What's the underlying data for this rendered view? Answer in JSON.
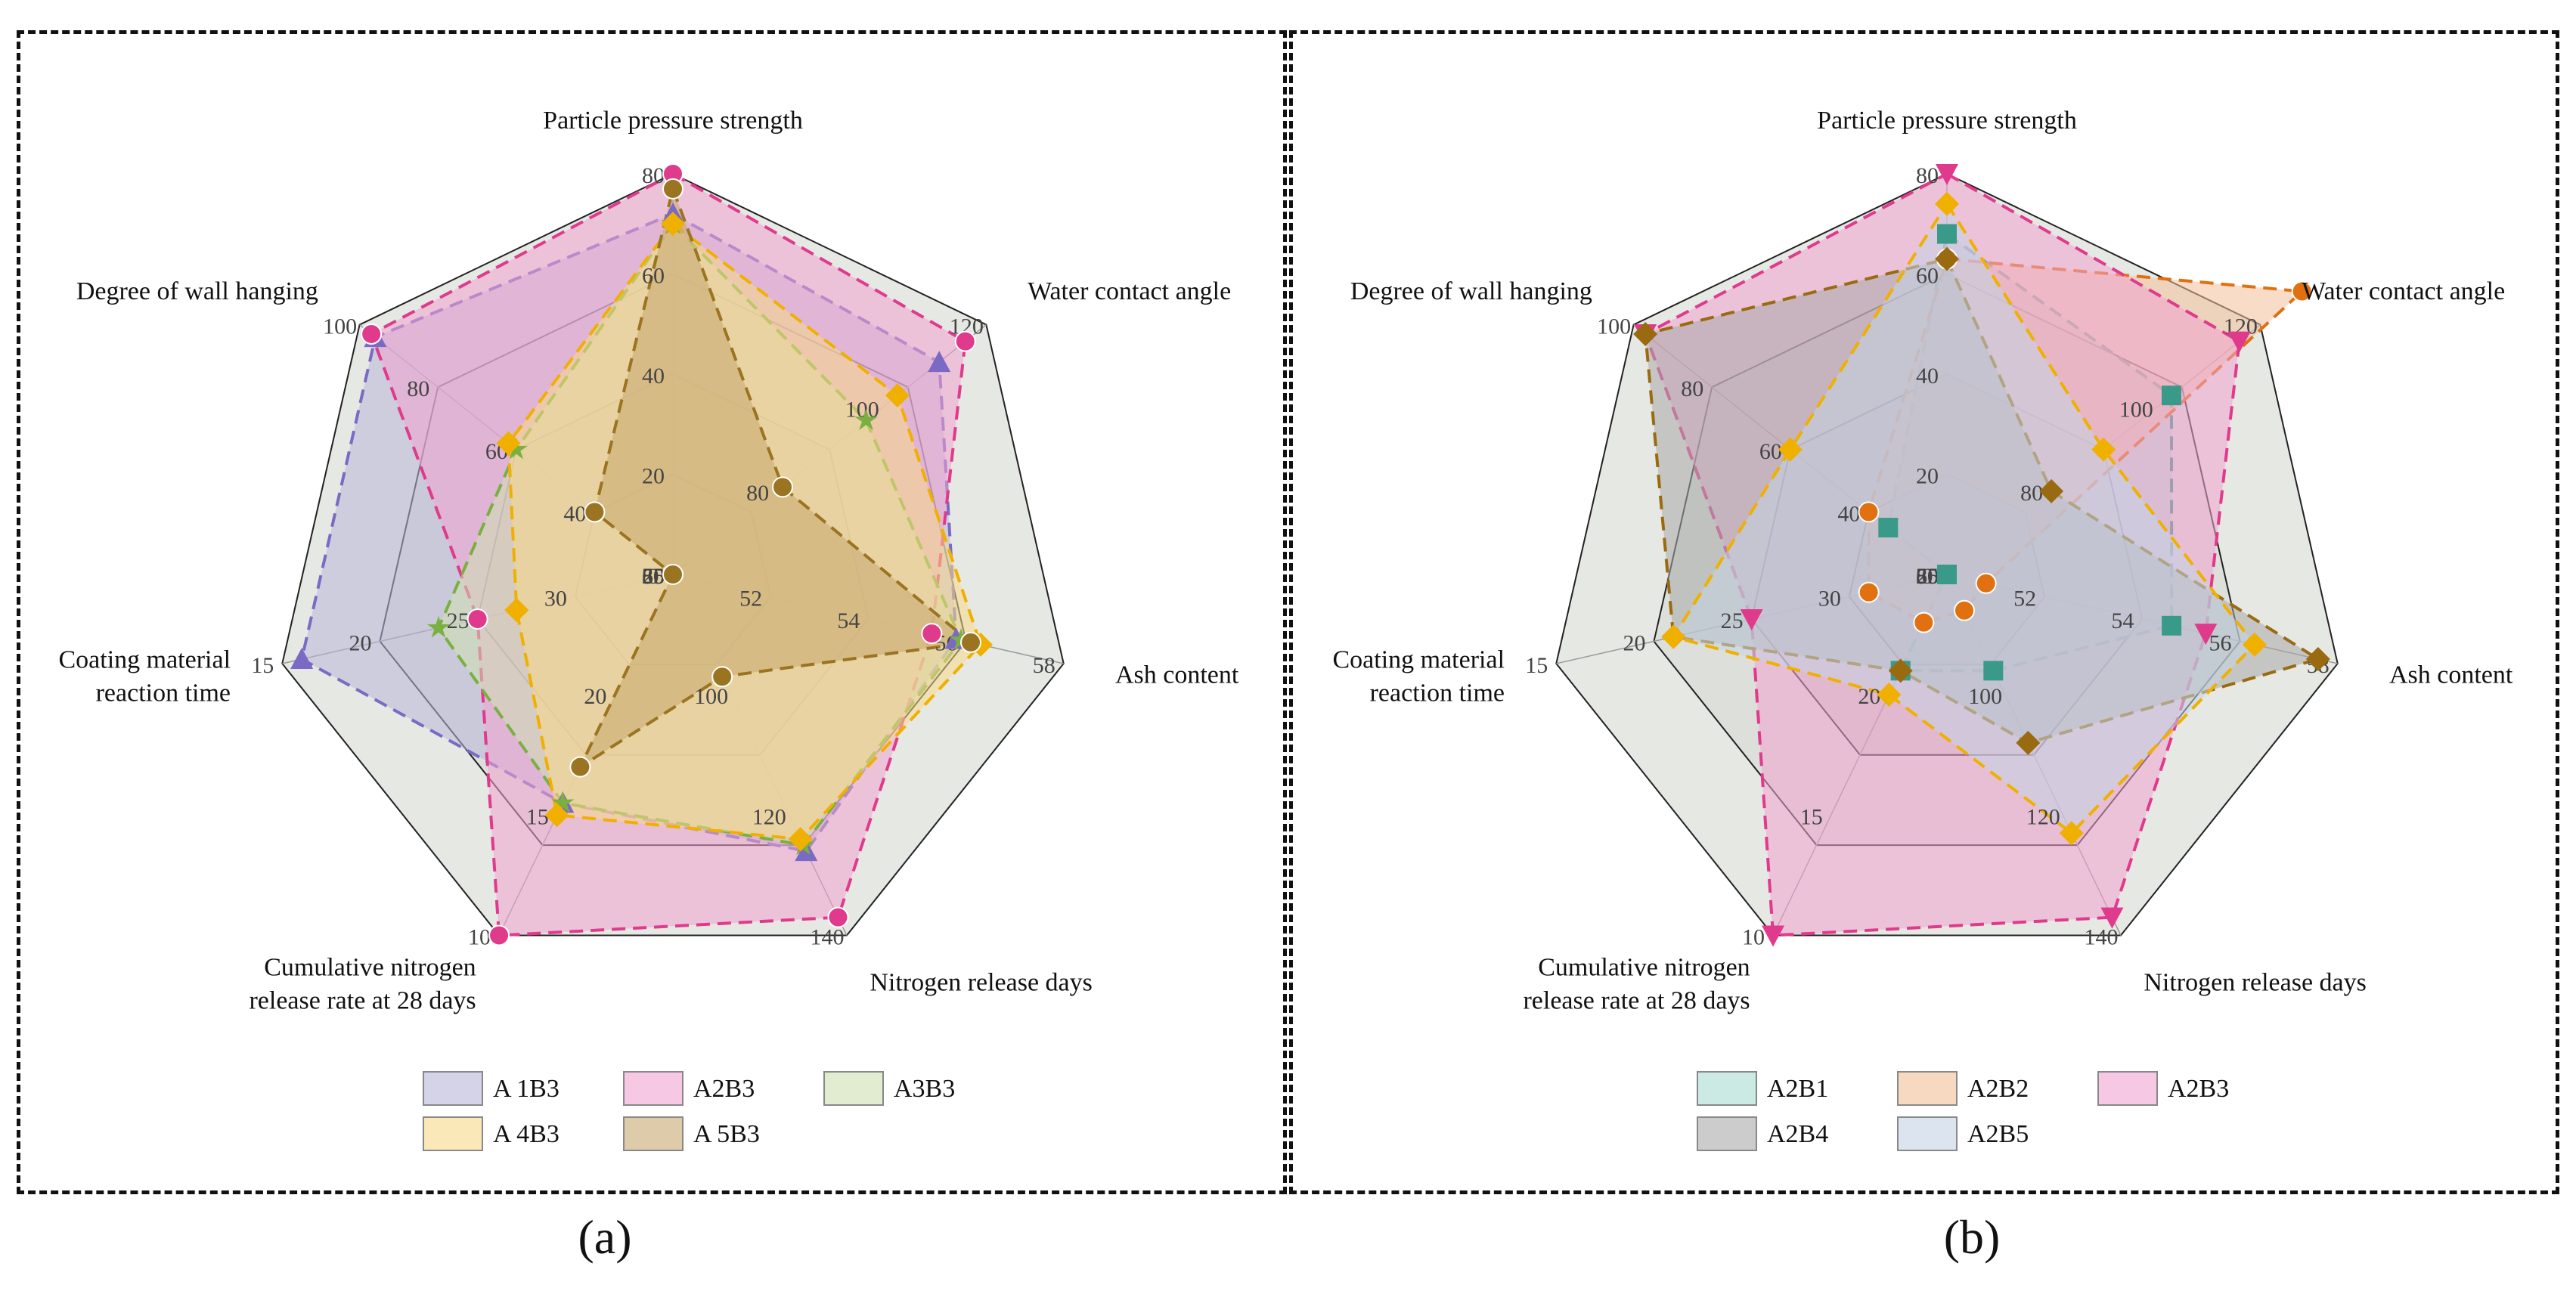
{
  "chart_data": [
    {
      "type": "radar",
      "caption": "(a)",
      "axes": [
        {
          "label": [
            "Particle pressure strength"
          ],
          "min": 0,
          "max": 80,
          "ticks": [
            "0",
            "20",
            "40",
            "60",
            "80"
          ]
        },
        {
          "label": [
            "Water contact angle"
          ],
          "min": 60,
          "max": 120,
          "ticks": [
            "60",
            "80",
            "100",
            "120"
          ]
        },
        {
          "label": [
            "Ash content"
          ],
          "min": 50,
          "max": 58,
          "ticks": [
            "50",
            "52",
            "54",
            "56",
            "58"
          ]
        },
        {
          "label": [
            "Nitrogen release days"
          ],
          "min": 80,
          "max": 140,
          "ticks": [
            "80",
            "100",
            "120",
            "140"
          ]
        },
        {
          "label": [
            "Cumulative nitrogen",
            "release rate at 28 days"
          ],
          "min": 25,
          "max": 10,
          "ticks": [
            "25",
            "20",
            "15",
            "10"
          ]
        },
        {
          "label": [
            "Coating material",
            "reaction time"
          ],
          "min": 35,
          "max": 15,
          "ticks": [
            "35",
            "30",
            "25",
            "20",
            "15"
          ]
        },
        {
          "label": [
            "Degree of wall hanging"
          ],
          "min": 20,
          "max": 100,
          "ticks": [
            "20",
            "40",
            "60",
            "80",
            "100"
          ]
        }
      ],
      "series": [
        {
          "name": "A 1B3",
          "values": [
            72,
            111,
            55.8,
            126,
            15.5,
            16,
            96
          ],
          "fill": "#b9b6d8",
          "line": "#7b6ac4",
          "marker": "triangle"
        },
        {
          "name": "A2B3",
          "values": [
            80,
            116,
            55.3,
            137,
            10,
            25,
            97
          ],
          "fill": "#f0a3d0",
          "line": "#e03a8c",
          "marker": "circle"
        },
        {
          "name": "A3B3",
          "values": [
            70,
            97,
            55.9,
            125,
            15.5,
            23,
            60
          ],
          "fill": "#cfe0b0",
          "line": "#7ab040",
          "marker": "star"
        },
        {
          "name": "A 4B3",
          "values": [
            70,
            103,
            56.3,
            124,
            15,
            27,
            62
          ],
          "fill": "#f8d888",
          "line": "#f0b000",
          "marker": "diamond"
        },
        {
          "name": "A 5B3",
          "values": [
            77,
            81,
            56.1,
            97,
            17,
            35,
            40
          ],
          "fill": "#c8a870",
          "line": "#9a7420",
          "marker": "sphere"
        }
      ]
    },
    {
      "type": "radar",
      "caption": "(b)",
      "axes": [
        {
          "label": [
            "Particle pressure strength"
          ],
          "min": 0,
          "max": 80,
          "ticks": [
            "0",
            "20",
            "40",
            "60",
            "80"
          ]
        },
        {
          "label": [
            "Water contact angle"
          ],
          "min": 60,
          "max": 120,
          "ticks": [
            "60",
            "80",
            "100",
            "120"
          ]
        },
        {
          "label": [
            "Ash content"
          ],
          "min": 50,
          "max": 58,
          "ticks": [
            "50",
            "52",
            "54",
            "56",
            "58"
          ]
        },
        {
          "label": [
            "Nitrogen release days"
          ],
          "min": 80,
          "max": 140,
          "ticks": [
            "80",
            "100",
            "120",
            "140"
          ]
        },
        {
          "label": [
            "Cumulative nitrogen",
            "release rate at 28 days"
          ],
          "min": 25,
          "max": 10,
          "ticks": [
            "25",
            "20",
            "15",
            "10"
          ]
        },
        {
          "label": [
            "Coating material",
            "reaction time"
          ],
          "min": 35,
          "max": 15,
          "ticks": [
            "35",
            "30",
            "25",
            "20",
            "15"
          ]
        },
        {
          "label": [
            "Degree of wall hanging"
          ],
          "min": 20,
          "max": 100,
          "ticks": [
            "20",
            "40",
            "60",
            "80",
            "100"
          ]
        }
      ],
      "series": [
        {
          "name": "A2B1",
          "values": [
            68,
            103,
            54.6,
            96,
            21,
            35,
            35
          ],
          "fill": "#a8dcd0",
          "line": "#3a9a8a",
          "marker": "square"
        },
        {
          "name": "A2B2",
          "values": [
            63,
            128,
            50.8,
            86,
            23,
            31,
            40
          ],
          "fill": "#f2c09a",
          "line": "#e07010",
          "marker": "circle"
        },
        {
          "name": "A2B3",
          "values": [
            80,
            116,
            55.3,
            137,
            10,
            25,
            97
          ],
          "fill": "#f0a3d0",
          "line": "#e03a8c",
          "marker": "triangle-down"
        },
        {
          "name": "A2B4",
          "values": [
            63,
            80,
            57.6,
            108,
            21,
            21,
            97
          ],
          "fill": "#aaaaaa",
          "line": "#9a6a10",
          "marker": "diamond"
        },
        {
          "name": "A2B5",
          "values": [
            74,
            90,
            56.3,
            123,
            20,
            21,
            60
          ],
          "fill": "#c4d4e4",
          "line": "#f0b000",
          "marker": "diamond"
        }
      ]
    }
  ],
  "captions": {
    "a": "(a)",
    "b": "(b)"
  }
}
